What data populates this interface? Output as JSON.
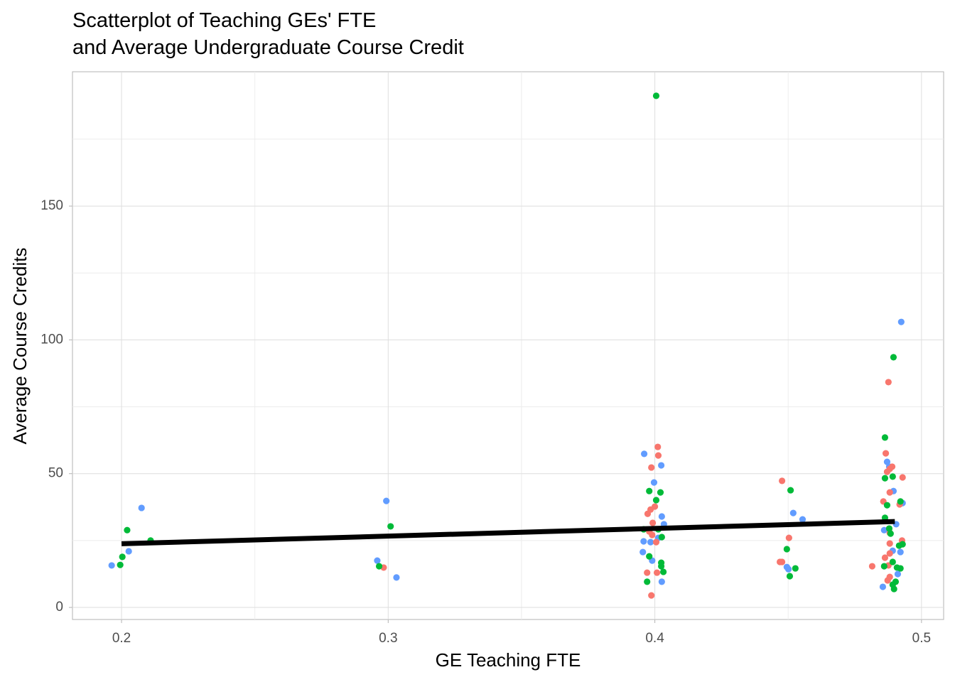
{
  "chart_data": {
    "type": "scatter",
    "title": "Scatterplot of Teaching GEs' FTE\nand Average Undergraduate Course Credit",
    "x_label": "GE Teaching FTE",
    "y_label": "Average Course Credits",
    "xlim": [
      0.1816,
      0.5083
    ],
    "ylim": [
      -4.5,
      200.2
    ],
    "xticks": [
      0.2,
      0.3,
      0.4,
      0.5
    ],
    "yticks": [
      0,
      50,
      100,
      150
    ],
    "grid": true,
    "series": [
      {
        "color": "#619CFF",
        "x": [
          0.1963,
          0.2075,
          0.2027,
          0.2993,
          0.2959,
          0.3031,
          0.396,
          0.3997,
          0.4024,
          0.4026,
          0.4034,
          0.3958,
          0.3984,
          0.3955,
          0.399,
          0.4026,
          0.4013,
          0.4519,
          0.4554,
          0.4495,
          0.4501,
          0.4924,
          0.4871,
          0.4879,
          0.4895,
          0.4905,
          0.486,
          0.4929,
          0.4921,
          0.4892,
          0.4911,
          0.4855
        ],
        "values": [
          15.7,
          37.2,
          21.0,
          39.8,
          17.5,
          11.2,
          57.4,
          46.7,
          53.1,
          34.0,
          31.1,
          24.7,
          24.4,
          20.7,
          17.5,
          9.6,
          26.0,
          35.3,
          32.9,
          15.1,
          14.3,
          106.7,
          54.4,
          52.6,
          43.5,
          31.1,
          28.9,
          39.0,
          20.7,
          21.2,
          12.5,
          7.7
        ]
      },
      {
        "color": "#F8766D",
        "x": [
          0.2983,
          0.4011,
          0.4013,
          0.3987,
          0.4,
          0.3984,
          0.3973,
          0.3992,
          0.3979,
          0.399,
          0.4005,
          0.3971,
          0.4008,
          0.3987,
          0.4477,
          0.4503,
          0.4477,
          0.4469,
          0.4876,
          0.4866,
          0.4881,
          0.4871,
          0.489,
          0.4929,
          0.4857,
          0.4881,
          0.4918,
          0.4881,
          0.4881,
          0.4927,
          0.4881,
          0.4863,
          0.4815,
          0.4876,
          0.4881,
          0.4873
        ],
        "values": [
          14.9,
          60.0,
          56.8,
          52.3,
          37.7,
          36.6,
          35.0,
          31.6,
          28.4,
          27.1,
          24.4,
          13.0,
          13.0,
          4.5,
          47.3,
          26.0,
          17.0,
          17.0,
          84.2,
          57.6,
          51.8,
          50.7,
          52.6,
          48.6,
          39.6,
          43.0,
          38.5,
          27.9,
          23.9,
          25.0,
          20.2,
          18.6,
          15.4,
          15.7,
          11.4,
          10.1
        ]
      },
      {
        "color": "#00BA38",
        "x": [
          0.2021,
          0.2003,
          0.1995,
          0.2109,
          0.3009,
          0.2966,
          0.4005,
          0.3979,
          0.4021,
          0.4005,
          0.3958,
          0.4013,
          0.4026,
          0.3979,
          0.4024,
          0.4024,
          0.4032,
          0.3971,
          0.4509,
          0.4495,
          0.4527,
          0.4506,
          0.4863,
          0.4892,
          0.4863,
          0.4895,
          0.4871,
          0.4921,
          0.4863,
          0.4879,
          0.4884,
          0.4916,
          0.4929,
          0.4892,
          0.486,
          0.4908,
          0.4921,
          0.4892,
          0.4897,
          0.4903
        ],
        "values": [
          28.9,
          18.9,
          15.9,
          25.0,
          30.3,
          15.4,
          191.2,
          43.5,
          43.0,
          40.1,
          29.2,
          29.2,
          26.3,
          19.1,
          16.7,
          15.4,
          13.3,
          9.6,
          43.8,
          21.8,
          14.6,
          11.7,
          63.5,
          48.9,
          48.3,
          93.5,
          38.2,
          39.6,
          33.5,
          29.5,
          27.6,
          23.1,
          23.6,
          17.0,
          15.4,
          14.9,
          14.6,
          8.5,
          6.9,
          9.6
        ]
      }
    ],
    "trend": {
      "color": "#000000",
      "x": [
        0.2,
        0.49
      ],
      "values": [
        23.8,
        32.1
      ]
    }
  }
}
